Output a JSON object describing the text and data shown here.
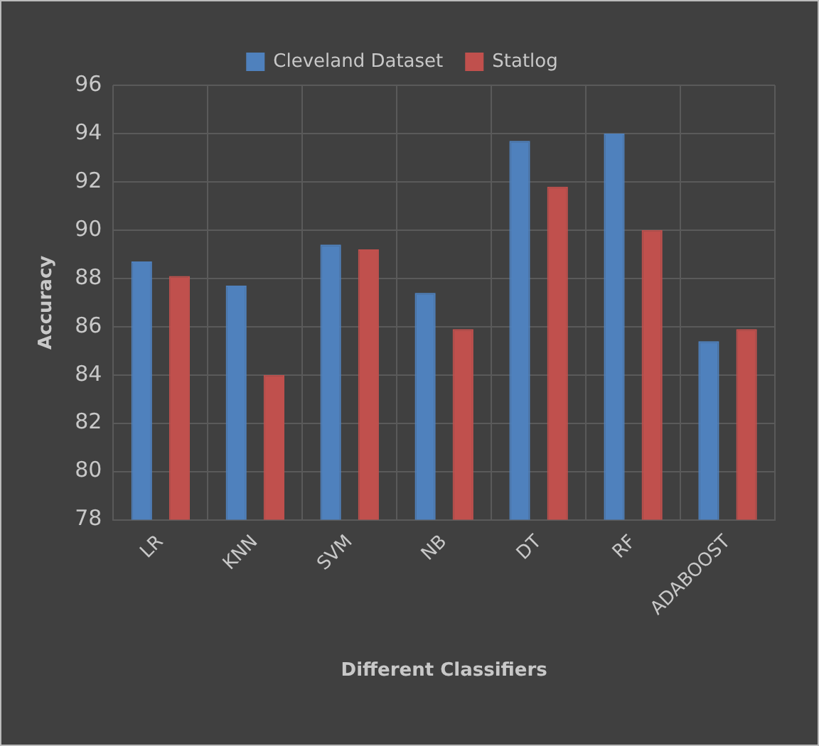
{
  "chart_data": {
    "type": "bar",
    "xlabel": "Different Classifiers",
    "ylabel": "Accuracy",
    "categories": [
      "LR",
      "KNN",
      "SVM",
      "NB",
      "DT",
      "RF",
      "ADABOOST"
    ],
    "series": [
      {
        "name": "Cleveland Dataset",
        "color": "#4f81bd",
        "values": [
          88.7,
          87.7,
          89.4,
          87.4,
          93.7,
          94,
          85.4
        ]
      },
      {
        "name": "Statlog",
        "color": "#c0504d",
        "values": [
          88.1,
          84,
          89.2,
          85.9,
          91.8,
          90,
          85.9
        ]
      }
    ],
    "ylim": [
      78,
      96
    ],
    "yticks": [
      78,
      80,
      82,
      84,
      86,
      88,
      90,
      92,
      94,
      96
    ],
    "grid": true,
    "legend": "top"
  }
}
